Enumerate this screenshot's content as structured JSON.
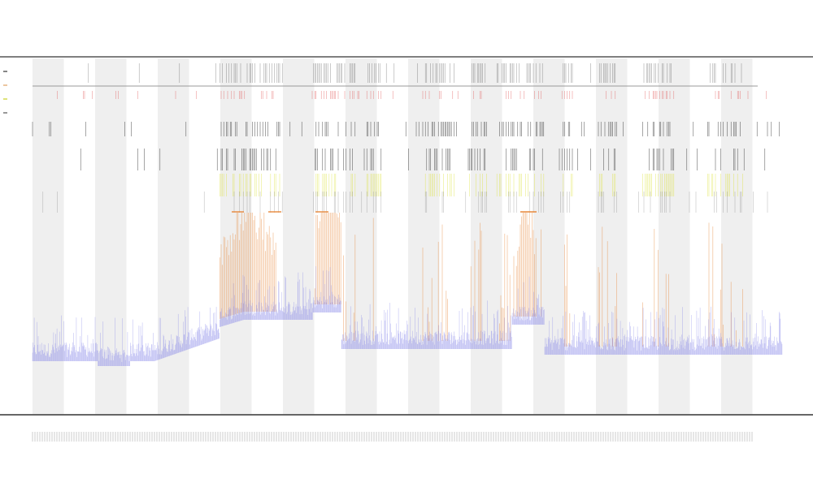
{
  "chart_data": {
    "type": "line",
    "title": "",
    "subtitle": "",
    "subtitle2": "",
    "xlabel": "",
    "ylabel": "",
    "legend_position": "top-left",
    "legend": [
      {
        "name": "",
        "color": "#333333"
      },
      {
        "name": "",
        "color": "#e0a060"
      },
      {
        "name": "",
        "color": "#c8d020"
      },
      {
        "name": "",
        "color": "#555555"
      }
    ],
    "track_labels": [],
    "x_range": [
      0,
      1000
    ],
    "y_range": [
      0,
      1
    ],
    "bands": 24,
    "grid": false,
    "colors": {
      "coverage": "#7b7be8",
      "orange": "#e8883a",
      "red": "#e05050",
      "yellow": "#d8e020",
      "black": "#222222",
      "band": "#efefef"
    },
    "peak_regions": [
      {
        "x_start": 270,
        "x_end": 340,
        "peak": 0.55
      },
      {
        "x_start": 388,
        "x_end": 420,
        "peak": 0.72
      },
      {
        "x_start": 635,
        "x_end": 660,
        "peak": 0.62
      }
    ]
  }
}
